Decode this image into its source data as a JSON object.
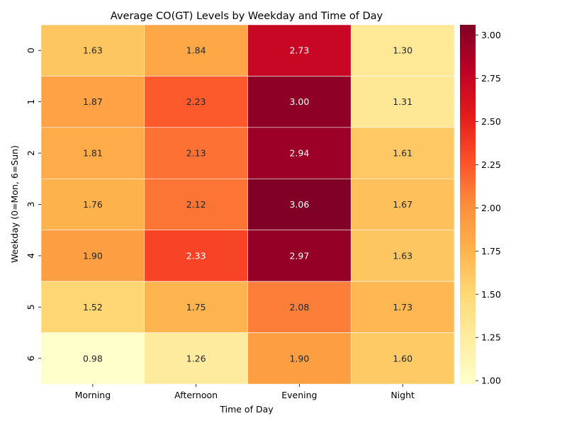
{
  "chart_data": {
    "type": "heatmap",
    "title": "Average CO(GT) Levels by Weekday and Time of Day",
    "xlabel": "Time of Day",
    "ylabel": "Weekday (0=Mon, 6=Sun)",
    "x_categories": [
      "Morning",
      "Afternoon",
      "Evening",
      "Night"
    ],
    "y_categories": [
      "0",
      "1",
      "2",
      "3",
      "4",
      "5",
      "6"
    ],
    "values": [
      [
        1.63,
        1.84,
        2.73,
        1.3
      ],
      [
        1.87,
        2.23,
        3.0,
        1.31
      ],
      [
        1.81,
        2.13,
        2.94,
        1.61
      ],
      [
        1.76,
        2.12,
        3.06,
        1.67
      ],
      [
        1.9,
        2.33,
        2.97,
        1.63
      ],
      [
        1.52,
        1.75,
        2.08,
        1.73
      ],
      [
        0.98,
        1.26,
        1.9,
        1.6
      ]
    ],
    "value_format": "0.00",
    "colormap": "YlOrRd",
    "colormap_stops": [
      "#ffffcc",
      "#ffeda0",
      "#fed976",
      "#feb24c",
      "#fd8d3c",
      "#fc4e2a",
      "#e31a1c",
      "#bd0026",
      "#800026"
    ],
    "vmin": 0.98,
    "vmax": 3.06,
    "colorbar_ticks": [
      "1.00",
      "1.25",
      "1.50",
      "1.75",
      "2.00",
      "2.25",
      "2.50",
      "2.75",
      "3.00"
    ],
    "grid_line_color": "#ffffff",
    "legend": "colorbar-right"
  }
}
